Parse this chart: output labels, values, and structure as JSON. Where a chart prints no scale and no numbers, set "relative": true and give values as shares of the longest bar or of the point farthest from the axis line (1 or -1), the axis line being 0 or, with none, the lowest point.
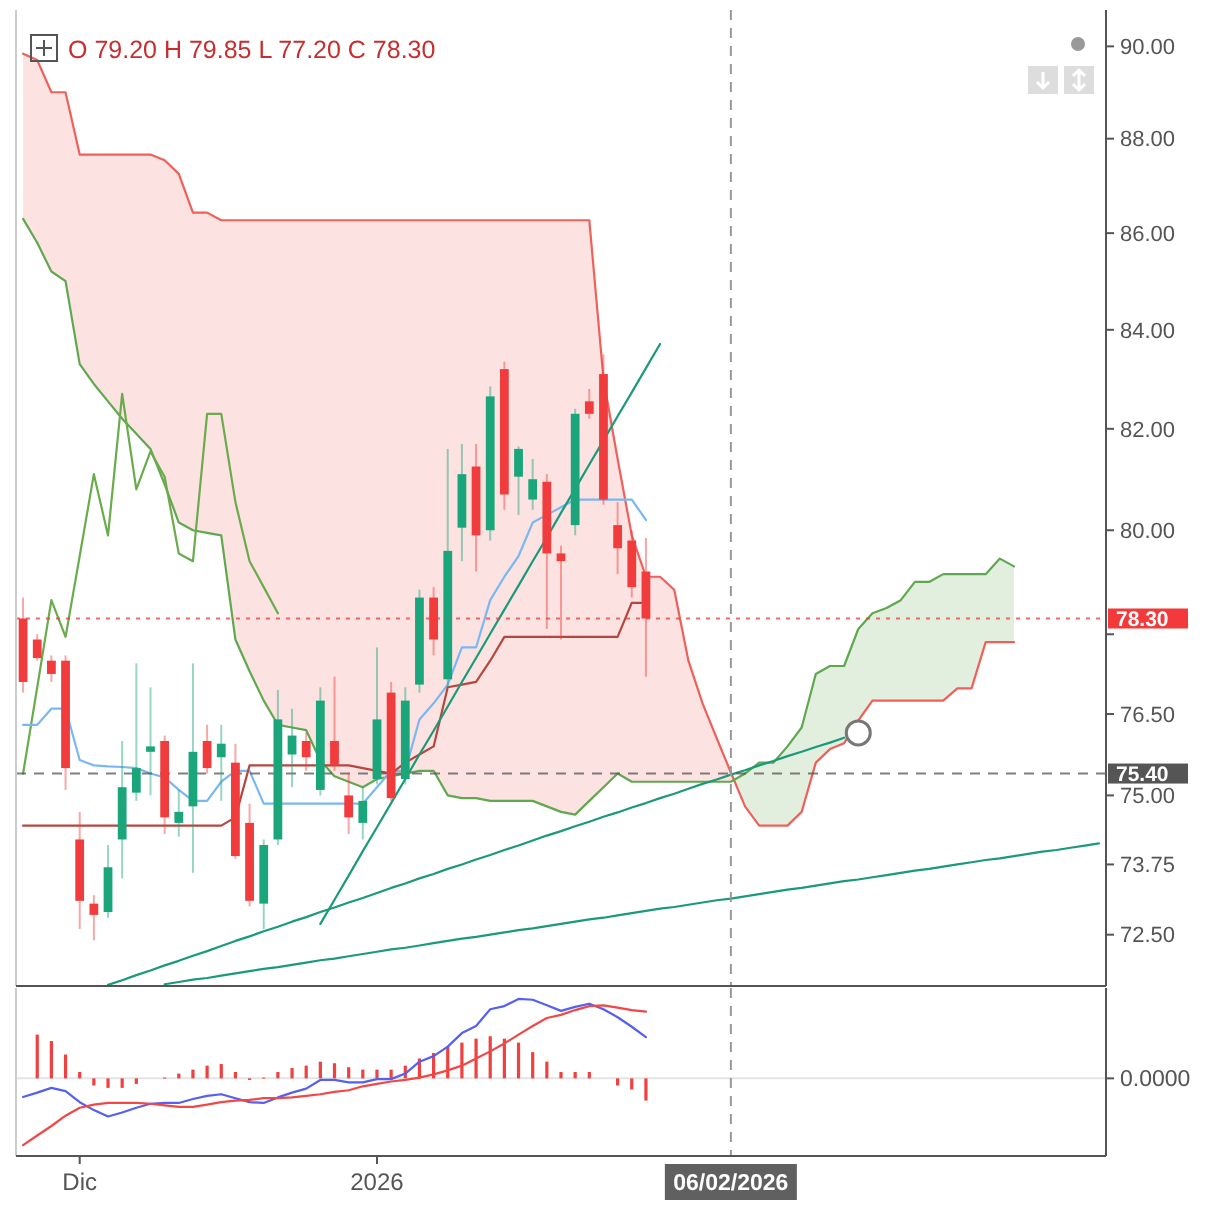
{
  "chart_data": [
    {
      "type": "candlestick",
      "log": "y",
      "categories": [
        null,
        null,
        null,
        null,
        "Dic",
        null,
        null,
        null,
        null,
        null,
        null,
        null,
        null,
        null,
        null,
        null,
        null,
        null,
        null,
        null,
        null,
        null,
        null,
        null,
        null,
        "2026",
        null,
        null,
        null,
        null,
        null,
        null,
        null,
        null,
        null,
        null,
        null,
        null,
        null,
        null,
        null,
        null,
        null,
        null,
        null,
        null,
        null,
        null,
        null,
        null,
        "06/02/2026",
        null,
        null,
        null,
        null,
        null,
        null,
        null,
        null,
        null,
        null,
        null,
        null,
        null,
        null,
        null,
        null,
        null,
        null,
        null,
        null,
        null,
        null,
        null,
        null,
        null,
        null
      ],
      "ylim": [
        71.6,
        90.8
      ],
      "yticks": [
        {
          "value": 72.5,
          "label": "72.50"
        },
        73.75,
        {
          "value": 75,
          "label": "75.00"
        },
        {
          "value": 76.5,
          "label": "76.50"
        },
        {
          "value": 78,
          "label": null
        },
        {
          "value": 80,
          "label": "80.00"
        },
        {
          "value": 82,
          "label": "82.00"
        },
        {
          "value": 84,
          "label": "84.00"
        },
        {
          "value": 86,
          "label": "86.00"
        },
        {
          "value": 88,
          "label": "88.00"
        },
        {
          "value": 90,
          "label": "90.00"
        }
      ],
      "tick_labels": "y",
      "grid": false,
      "annotations": [
        "O 79.20 H 79.85 L 77.20 C 78.30"
      ],
      "ref_lines": [
        {
          "axis": "y",
          "value": 78.3,
          "label": "78.30",
          "color": "#f23a3a",
          "line_style": "dotted"
        },
        {
          "axis": "y",
          "value": 75.4,
          "label": "75.40",
          "color": "#555555",
          "line_style": "dashed"
        },
        {
          "axis": "x",
          "value": "06/02/2026",
          "color": "#999999",
          "line_style": "dashed"
        }
      ],
      "ohlc": [
        [
          78.3,
          78.7,
          76.9,
          77.1
        ],
        [
          77.9,
          78.0,
          77.5,
          77.55
        ],
        [
          77.5,
          77.6,
          77.1,
          77.25
        ],
        [
          77.5,
          77.6,
          75.1,
          75.5
        ],
        [
          74.2,
          74.7,
          72.6,
          73.1
        ],
        [
          73.05,
          73.2,
          72.4,
          72.85
        ],
        [
          72.9,
          74.1,
          72.8,
          73.7
        ],
        [
          74.2,
          76.0,
          73.5,
          75.15
        ],
        [
          75.05,
          77.45,
          74.9,
          75.5
        ],
        [
          75.8,
          77.0,
          75.0,
          75.9
        ],
        [
          76.0,
          76.1,
          74.3,
          74.6
        ],
        [
          74.5,
          75.1,
          74.25,
          74.7
        ],
        [
          74.8,
          77.45,
          73.6,
          75.8
        ],
        [
          76.0,
          76.3,
          75.4,
          75.5
        ],
        [
          75.7,
          76.3,
          74.9,
          75.95
        ],
        [
          75.6,
          75.95,
          73.85,
          73.9
        ],
        [
          74.5,
          74.85,
          73.0,
          73.1
        ],
        [
          73.05,
          74.2,
          72.6,
          74.1
        ],
        [
          74.2,
          76.95,
          74.1,
          76.4
        ],
        [
          75.75,
          76.6,
          75.15,
          76.1
        ],
        [
          76.0,
          76.15,
          75.45,
          75.7
        ],
        [
          75.1,
          77.0,
          75.0,
          76.75
        ],
        [
          76.0,
          77.2,
          75.45,
          75.55
        ],
        [
          75.0,
          75.4,
          74.3,
          74.6
        ],
        [
          74.5,
          75.15,
          74.2,
          74.9
        ],
        [
          75.3,
          77.75,
          75.2,
          76.4
        ],
        [
          76.9,
          77.1,
          74.9,
          74.95
        ],
        [
          75.3,
          77.0,
          75.2,
          76.75
        ],
        [
          77.05,
          78.85,
          76.9,
          78.7
        ],
        [
          78.7,
          78.9,
          77.6,
          77.9
        ],
        [
          77.15,
          81.6,
          77.0,
          79.6
        ],
        [
          80.05,
          81.7,
          79.4,
          81.1
        ],
        [
          81.25,
          81.7,
          79.2,
          79.9
        ],
        [
          80.0,
          82.85,
          79.8,
          82.65
        ],
        [
          83.2,
          83.35,
          80.4,
          80.7
        ],
        [
          81.05,
          81.65,
          80.3,
          81.6
        ],
        [
          80.6,
          81.4,
          80.4,
          81.0
        ],
        [
          80.95,
          81.1,
          78.1,
          79.55
        ],
        [
          79.55,
          79.7,
          77.9,
          79.4
        ],
        [
          80.1,
          82.4,
          79.9,
          82.3
        ],
        [
          82.55,
          82.8,
          82.2,
          82.3
        ],
        [
          83.1,
          83.5,
          80.5,
          80.6
        ],
        [
          80.1,
          80.55,
          79.15,
          79.65
        ],
        [
          79.8,
          80.0,
          78.7,
          78.9
        ],
        [
          79.2,
          79.85,
          77.2,
          78.3
        ],
        null,
        null,
        null,
        null,
        null,
        null,
        null,
        null,
        null,
        null,
        null,
        null,
        null,
        null,
        null,
        null,
        null,
        null,
        null,
        null,
        null,
        null,
        null,
        null,
        null,
        null,
        null,
        null,
        null,
        null,
        null,
        null
      ],
      "colors": [
        "#f03c3c",
        "#f03c3c",
        "#f03c3c",
        "#f03c3c",
        "#f03c3c",
        "#f03c3c",
        "#1ba57b",
        "#1ba57b",
        "#1ba57b",
        "#1ba57b",
        "#f03c3c",
        "#1ba57b",
        "#1ba57b",
        "#f03c3c",
        "#1ba57b",
        "#f03c3c",
        "#f03c3c",
        "#1ba57b",
        "#1ba57b",
        "#1ba57b",
        "#f03c3c",
        "#1ba57b",
        "#f03c3c",
        "#f03c3c",
        "#1ba57b",
        "#1ba57b",
        "#f03c3c",
        "#1ba57b",
        "#1ba57b",
        "#f03c3c",
        "#1ba57b",
        "#1ba57b",
        "#f03c3c",
        "#1ba57b",
        "#f03c3c",
        "#1ba57b",
        "#1ba57b",
        "#f03c3c",
        "#f03c3c",
        "#1ba57b",
        "#f03c3c",
        "#f03c3c",
        "#f03c3c",
        "#f03c3c",
        "#f03c3c",
        null,
        null,
        null,
        null,
        null,
        null,
        null,
        null,
        null,
        null,
        null,
        null,
        null,
        null,
        null,
        null,
        null,
        null,
        null,
        null,
        null,
        null,
        null,
        null,
        null,
        null,
        null,
        null,
        null,
        null,
        null,
        null
      ],
      "series": [
        {
          "type": "line",
          "color": "#f0605a",
          "values": [
            89.84,
            89.7,
            89.0,
            89.0,
            87.66,
            87.66,
            87.66,
            87.66,
            87.66,
            87.66,
            87.54,
            87.25,
            86.43,
            86.43,
            86.27,
            86.27,
            86.27,
            86.27,
            86.27,
            86.27,
            86.27,
            86.27,
            86.27,
            86.27,
            86.27,
            86.27,
            86.27,
            86.27,
            86.27,
            86.27,
            86.27,
            86.27,
            86.27,
            86.27,
            86.27,
            86.27,
            86.27,
            86.27,
            86.27,
            86.27,
            86.27,
            83.0,
            81.4,
            79.9,
            79.1,
            79.1,
            78.85,
            77.5,
            76.7,
            76.05,
            75.42,
            74.8,
            74.45,
            74.45,
            74.45,
            74.7,
            75.6,
            75.85,
            75.96,
            76.38,
            76.75,
            76.75,
            76.75,
            76.75,
            76.75,
            76.75,
            76.98,
            76.98,
            77.85,
            77.85,
            77.85,
            null,
            null,
            null,
            null,
            null,
            null
          ],
          "lower": [
            86.3,
            85.8,
            85.2,
            85.0,
            83.3,
            82.9,
            82.55,
            82.2,
            81.9,
            81.6,
            80.9,
            80.15,
            80.0,
            79.95,
            79.9,
            77.9,
            77.3,
            76.75,
            76.3,
            76.25,
            76.2,
            75.64,
            75.35,
            75.25,
            75.15,
            75.3,
            75.35,
            75.4,
            75.45,
            75.45,
            75.0,
            74.95,
            74.95,
            74.9,
            74.9,
            74.9,
            74.9,
            74.8,
            74.7,
            74.65,
            74.9,
            75.15,
            75.4,
            75.25,
            75.25,
            75.25,
            75.25,
            75.25,
            75.25,
            75.25,
            75.25,
            null,
            null,
            null,
            null,
            null,
            null,
            null,
            null,
            null,
            null,
            null,
            null,
            null,
            null,
            null,
            null,
            null,
            null,
            null,
            null,
            null,
            null,
            null,
            null,
            null,
            null
          ],
          "upper": [
            89.84,
            89.7,
            89.0,
            89.0,
            87.66,
            87.66,
            87.66,
            87.66,
            87.66,
            87.66,
            87.54,
            87.25,
            86.43,
            86.43,
            86.27,
            86.27,
            86.27,
            86.27,
            86.27,
            86.27,
            86.27,
            86.27,
            86.27,
            86.27,
            86.27,
            86.27,
            86.27,
            86.27,
            86.27,
            86.27,
            86.27,
            86.27,
            86.27,
            86.27,
            86.27,
            86.27,
            86.27,
            86.27,
            86.27,
            86.27,
            86.27,
            83.0,
            81.4,
            79.9,
            79.1,
            79.1,
            78.85,
            77.5,
            76.7,
            76.05,
            75.42,
            null,
            null,
            null,
            null,
            null,
            null,
            null,
            null,
            null,
            null,
            null,
            null,
            null,
            null,
            null,
            null,
            null,
            null,
            null,
            null,
            null,
            null,
            null,
            null,
            null,
            null
          ]
        },
        {
          "type": "line",
          "color": "#5fa84f",
          "values": [
            86.3,
            85.8,
            85.2,
            85.0,
            83.3,
            82.9,
            82.55,
            82.2,
            81.9,
            81.6,
            80.9,
            80.15,
            80.0,
            79.95,
            79.9,
            77.9,
            77.3,
            76.75,
            76.3,
            76.25,
            76.2,
            75.64,
            75.35,
            75.25,
            75.15,
            75.3,
            75.35,
            75.4,
            75.45,
            75.45,
            75.0,
            74.95,
            74.95,
            74.9,
            74.9,
            74.9,
            74.9,
            74.8,
            74.7,
            74.65,
            74.9,
            75.15,
            75.4,
            75.25,
            75.25,
            75.25,
            75.25,
            75.25,
            75.25,
            75.25,
            75.25,
            75.4,
            75.6,
            75.6,
            75.9,
            76.25,
            77.25,
            77.4,
            77.4,
            78.1,
            78.4,
            78.5,
            78.65,
            79.0,
            79.0,
            79.15,
            79.15,
            79.15,
            79.15,
            79.45,
            79.3,
            null,
            null,
            null,
            null,
            null,
            null
          ],
          "lower": [
            null,
            null,
            null,
            null,
            null,
            null,
            null,
            null,
            null,
            null,
            null,
            null,
            null,
            null,
            null,
            null,
            null,
            null,
            null,
            null,
            null,
            null,
            null,
            null,
            null,
            null,
            null,
            null,
            null,
            null,
            null,
            null,
            null,
            null,
            null,
            null,
            null,
            null,
            null,
            null,
            null,
            null,
            null,
            null,
            null,
            null,
            null,
            null,
            null,
            null,
            75.42,
            74.8,
            74.45,
            74.45,
            74.45,
            74.7,
            75.6,
            75.85,
            75.96,
            76.38,
            76.75,
            76.75,
            76.75,
            76.75,
            76.75,
            76.75,
            76.98,
            76.98,
            77.85,
            77.85,
            77.85,
            null,
            null,
            null,
            null,
            null,
            null
          ],
          "upper": [
            null,
            null,
            null,
            null,
            null,
            null,
            null,
            null,
            null,
            null,
            null,
            null,
            null,
            null,
            null,
            null,
            null,
            null,
            null,
            null,
            null,
            null,
            null,
            null,
            null,
            null,
            null,
            null,
            null,
            null,
            null,
            null,
            null,
            null,
            null,
            null,
            null,
            null,
            null,
            null,
            null,
            null,
            null,
            null,
            null,
            null,
            null,
            null,
            null,
            null,
            75.25,
            75.4,
            75.6,
            75.6,
            75.9,
            76.25,
            77.25,
            77.4,
            77.4,
            78.1,
            78.4,
            78.5,
            78.65,
            79.0,
            79.0,
            79.15,
            79.15,
            79.15,
            79.15,
            79.45,
            79.3,
            null,
            null,
            null,
            null,
            null,
            null
          ]
        },
        {
          "type": "line",
          "color": "#6aab4d",
          "values": [
            75.4,
            77.0,
            78.65,
            77.95,
            79.5,
            81.1,
            79.9,
            82.7,
            80.8,
            81.55,
            81.05,
            79.55,
            79.4,
            82.3,
            82.3,
            80.55,
            79.4,
            78.9,
            78.4,
            null,
            null,
            null,
            null,
            null,
            null,
            null,
            null,
            null,
            null,
            null,
            null,
            null,
            null,
            null,
            null,
            null,
            null,
            null,
            null,
            null,
            null,
            null,
            null,
            null,
            null,
            null,
            null,
            null,
            null,
            null,
            null,
            null,
            null,
            null,
            null,
            null,
            null,
            null,
            null,
            null,
            null,
            null,
            null,
            null,
            null,
            null,
            null,
            null,
            null,
            null,
            null,
            null,
            null,
            null,
            null,
            null,
            null
          ]
        },
        {
          "type": "line",
          "color": "#7ab8f2",
          "values": [
            76.3,
            76.3,
            76.6,
            76.6,
            75.65,
            75.55,
            75.53,
            75.52,
            75.5,
            75.4,
            75.33,
            75.1,
            74.9,
            74.9,
            75.25,
            75.45,
            75.45,
            74.85,
            74.85,
            74.85,
            74.85,
            74.85,
            74.85,
            74.85,
            74.85,
            75.15,
            75.45,
            75.45,
            76.4,
            76.7,
            77.05,
            77.75,
            77.75,
            78.65,
            79.1,
            79.5,
            80.15,
            80.3,
            80.45,
            80.6,
            80.6,
            80.6,
            80.6,
            80.6,
            80.2,
            null,
            null,
            null,
            null,
            null,
            null,
            null,
            null,
            null,
            null,
            null,
            null,
            null,
            null,
            null,
            null,
            null,
            null,
            null,
            null,
            null,
            null,
            null,
            null,
            null,
            null,
            null,
            null,
            null,
            null,
            null,
            null
          ]
        },
        {
          "type": "line",
          "color": "#b5473f",
          "values": [
            74.45,
            74.45,
            74.45,
            74.45,
            74.45,
            74.45,
            74.45,
            74.45,
            74.45,
            74.45,
            74.45,
            74.45,
            74.45,
            74.45,
            74.45,
            74.6,
            75.55,
            75.55,
            75.55,
            75.55,
            75.55,
            75.55,
            75.55,
            75.55,
            75.5,
            75.45,
            75.4,
            75.6,
            75.75,
            75.9,
            77.0,
            77.05,
            77.1,
            77.5,
            77.95,
            77.95,
            77.95,
            77.95,
            77.95,
            77.95,
            77.95,
            77.95,
            77.95,
            78.6,
            78.6,
            null,
            null,
            null,
            null,
            null,
            null,
            null,
            null,
            null,
            null,
            null,
            null,
            null,
            null,
            null,
            null,
            null,
            null,
            null,
            null,
            null,
            null,
            null,
            null,
            null,
            null,
            null,
            null,
            null,
            null,
            null,
            null
          ]
        },
        {
          "type": "line",
          "color": "#1a9a7a",
          "values": [
            null,
            null,
            null,
            null,
            null,
            null,
            null,
            null,
            null,
            null,
            null,
            null,
            null,
            null,
            null,
            null,
            null,
            null,
            null,
            null,
            null,
            72.69,
            73.12,
            73.55,
            73.99,
            74.42,
            74.86,
            75.3,
            75.75,
            76.19,
            76.64,
            77.1,
            77.55,
            78.01,
            78.47,
            78.93,
            79.4,
            79.86,
            80.34,
            80.81,
            81.29,
            81.77,
            82.25,
            82.73,
            83.22,
            83.71,
            null,
            null,
            null,
            null,
            null,
            null,
            null,
            null,
            null,
            null,
            null,
            null,
            null,
            null,
            null,
            null,
            null,
            null,
            null,
            null,
            null,
            null,
            null,
            null,
            null,
            null,
            null,
            null,
            null,
            null,
            null
          ]
        },
        {
          "type": "line",
          "color": "#1a9a7a",
          "values": [
            null,
            null,
            null,
            null,
            null,
            null,
            71.62,
            71.7,
            71.79,
            71.87,
            71.96,
            72.04,
            72.13,
            72.21,
            72.3,
            72.39,
            72.47,
            72.56,
            72.64,
            72.73,
            72.81,
            72.9,
            72.98,
            73.07,
            73.15,
            73.24,
            73.33,
            73.41,
            73.5,
            73.58,
            73.67,
            73.75,
            73.84,
            73.92,
            74.01,
            74.09,
            74.18,
            74.27,
            74.35,
            74.44,
            74.52,
            74.61,
            74.69,
            74.78,
            74.86,
            74.95,
            75.03,
            75.12,
            75.21,
            75.29,
            75.38,
            75.46,
            75.55,
            75.63,
            75.72,
            75.8,
            75.89,
            75.97,
            76.06,
            null,
            null,
            null,
            null,
            null,
            null,
            null,
            null,
            null,
            null,
            null,
            null,
            null,
            null,
            null,
            null,
            null,
            null
          ]
        },
        {
          "type": "line",
          "color": "#1a9a7a",
          "values": [
            null,
            null,
            null,
            null,
            null,
            null,
            null,
            null,
            null,
            null,
            71.63,
            71.67,
            71.71,
            71.74,
            71.78,
            71.82,
            71.86,
            71.9,
            71.93,
            71.97,
            72.01,
            72.05,
            72.08,
            72.12,
            72.16,
            72.2,
            72.24,
            72.27,
            72.31,
            72.35,
            72.39,
            72.43,
            72.46,
            72.5,
            72.54,
            72.58,
            72.61,
            72.65,
            72.69,
            72.73,
            72.77,
            72.8,
            72.84,
            72.88,
            72.92,
            72.96,
            72.99,
            73.03,
            73.07,
            73.11,
            73.14,
            73.18,
            73.22,
            73.26,
            73.3,
            73.33,
            73.37,
            73.41,
            73.45,
            73.48,
            73.52,
            73.56,
            73.6,
            73.64,
            73.67,
            73.71,
            73.75,
            73.79,
            73.83,
            73.86,
            73.9,
            73.94,
            73.98,
            74.01,
            74.05,
            74.09,
            74.13
          ]
        },
        {
          "type": "scatter",
          "color": "#777777",
          "marker": "circle",
          "values": [
            null,
            null,
            null,
            null,
            null,
            null,
            null,
            null,
            null,
            null,
            null,
            null,
            null,
            null,
            null,
            null,
            null,
            null,
            null,
            null,
            null,
            null,
            null,
            null,
            null,
            null,
            null,
            null,
            null,
            null,
            null,
            null,
            null,
            null,
            null,
            null,
            null,
            null,
            null,
            null,
            null,
            null,
            null,
            null,
            null,
            null,
            null,
            null,
            null,
            null,
            null,
            null,
            null,
            null,
            null,
            null,
            null,
            null,
            null,
            76.15,
            null,
            null,
            null,
            null,
            null,
            null,
            null,
            null,
            null,
            null,
            null,
            null,
            null,
            null,
            null,
            null,
            null
          ]
        }
      ]
    },
    {
      "type": "bar",
      "relative": true,
      "categories": [
        null,
        null,
        null,
        null,
        "Dic",
        null,
        null,
        null,
        null,
        null,
        null,
        null,
        null,
        null,
        null,
        null,
        null,
        null,
        null,
        null,
        null,
        null,
        null,
        null,
        null,
        "2026",
        null,
        null,
        null,
        null,
        null,
        null,
        null,
        null,
        null,
        null,
        null,
        null,
        null,
        null,
        null,
        null,
        null,
        null,
        null,
        null,
        null,
        null,
        null,
        null,
        "06/02/2026",
        null,
        null,
        null,
        null,
        null,
        null,
        null,
        null,
        null,
        null,
        null,
        null,
        null,
        null,
        null,
        null,
        null,
        null,
        null,
        null,
        null,
        null,
        null,
        null,
        null,
        null
      ],
      "tick_labels": "x",
      "grid": false,
      "annotations": [
        "0.0000"
      ],
      "ref_lines": [
        {
          "axis": "x",
          "value": "06/02/2026",
          "color": "#999999",
          "line_style": "dashed"
        }
      ],
      "series": [
        {
          "color": "#f04040",
          "values": [
            null,
            0.55,
            0.47,
            0.3,
            0.08,
            -0.09,
            -0.12,
            -0.12,
            -0.07,
            null,
            0.01,
            0.06,
            0.11,
            0.16,
            0.18,
            0.08,
            -0.02,
            0.01,
            0.08,
            0.13,
            0.16,
            0.21,
            0.19,
            0.14,
            0.11,
            0.11,
            0.11,
            0.16,
            0.25,
            0.32,
            0.4,
            0.45,
            0.5,
            0.53,
            0.5,
            0.45,
            0.33,
            0.21,
            0.08,
            0.08,
            0.08,
            null,
            -0.09,
            -0.14,
            -0.28,
            null,
            null,
            null,
            null,
            null,
            null,
            null,
            null,
            null,
            null,
            null,
            null,
            null,
            null,
            null,
            null,
            null,
            null,
            null,
            null,
            null,
            null,
            null,
            null,
            null,
            null,
            null,
            null,
            null,
            null,
            null,
            null
          ]
        },
        {
          "type": "line",
          "color": "#5560f0",
          "values": [
            -0.235,
            -0.18,
            -0.12,
            -0.16,
            -0.3,
            -0.4,
            -0.48,
            -0.43,
            -0.37,
            -0.32,
            -0.31,
            -0.31,
            -0.26,
            -0.22,
            -0.2,
            -0.25,
            -0.3,
            -0.31,
            -0.24,
            -0.18,
            -0.13,
            -0.02,
            -0.02,
            -0.05,
            -0.05,
            -0.01,
            -0.01,
            0.06,
            0.21,
            0.28,
            0.4,
            0.57,
            0.66,
            0.87,
            0.91,
            1,
            0.99,
            0.92,
            0.85,
            0.9,
            0.94,
            0.87,
            0.77,
            0.65,
            0.52,
            null,
            null,
            null,
            null,
            null,
            null,
            null,
            null,
            null,
            null,
            null,
            null,
            null,
            null,
            null,
            null,
            null,
            null,
            null,
            null,
            null,
            null,
            null,
            null,
            null,
            null,
            null,
            null,
            null,
            null,
            null,
            null
          ]
        },
        {
          "type": "line",
          "color": "#f04848",
          "values": [
            -0.84,
            -0.72,
            -0.6,
            -0.47,
            -0.37,
            -0.33,
            -0.31,
            -0.31,
            -0.31,
            -0.32,
            -0.34,
            -0.36,
            -0.36,
            -0.33,
            -0.3,
            -0.28,
            -0.27,
            -0.25,
            -0.25,
            -0.24,
            -0.22,
            -0.2,
            -0.17,
            -0.15,
            -0.1,
            -0.07,
            -0.04,
            -0.02,
            0.01,
            0.05,
            0.1,
            0.16,
            0.25,
            0.34,
            0.44,
            0.55,
            0.66,
            0.76,
            0.8,
            0.86,
            0.91,
            0.92,
            0.89,
            0.86,
            0.84,
            null,
            null,
            null,
            null,
            null,
            null,
            null,
            null,
            null,
            null,
            null,
            null,
            null,
            null,
            null,
            null,
            null,
            null,
            null,
            null,
            null,
            null,
            null,
            null,
            null,
            null,
            null,
            null,
            null,
            null,
            null,
            null
          ]
        }
      ]
    }
  ]
}
